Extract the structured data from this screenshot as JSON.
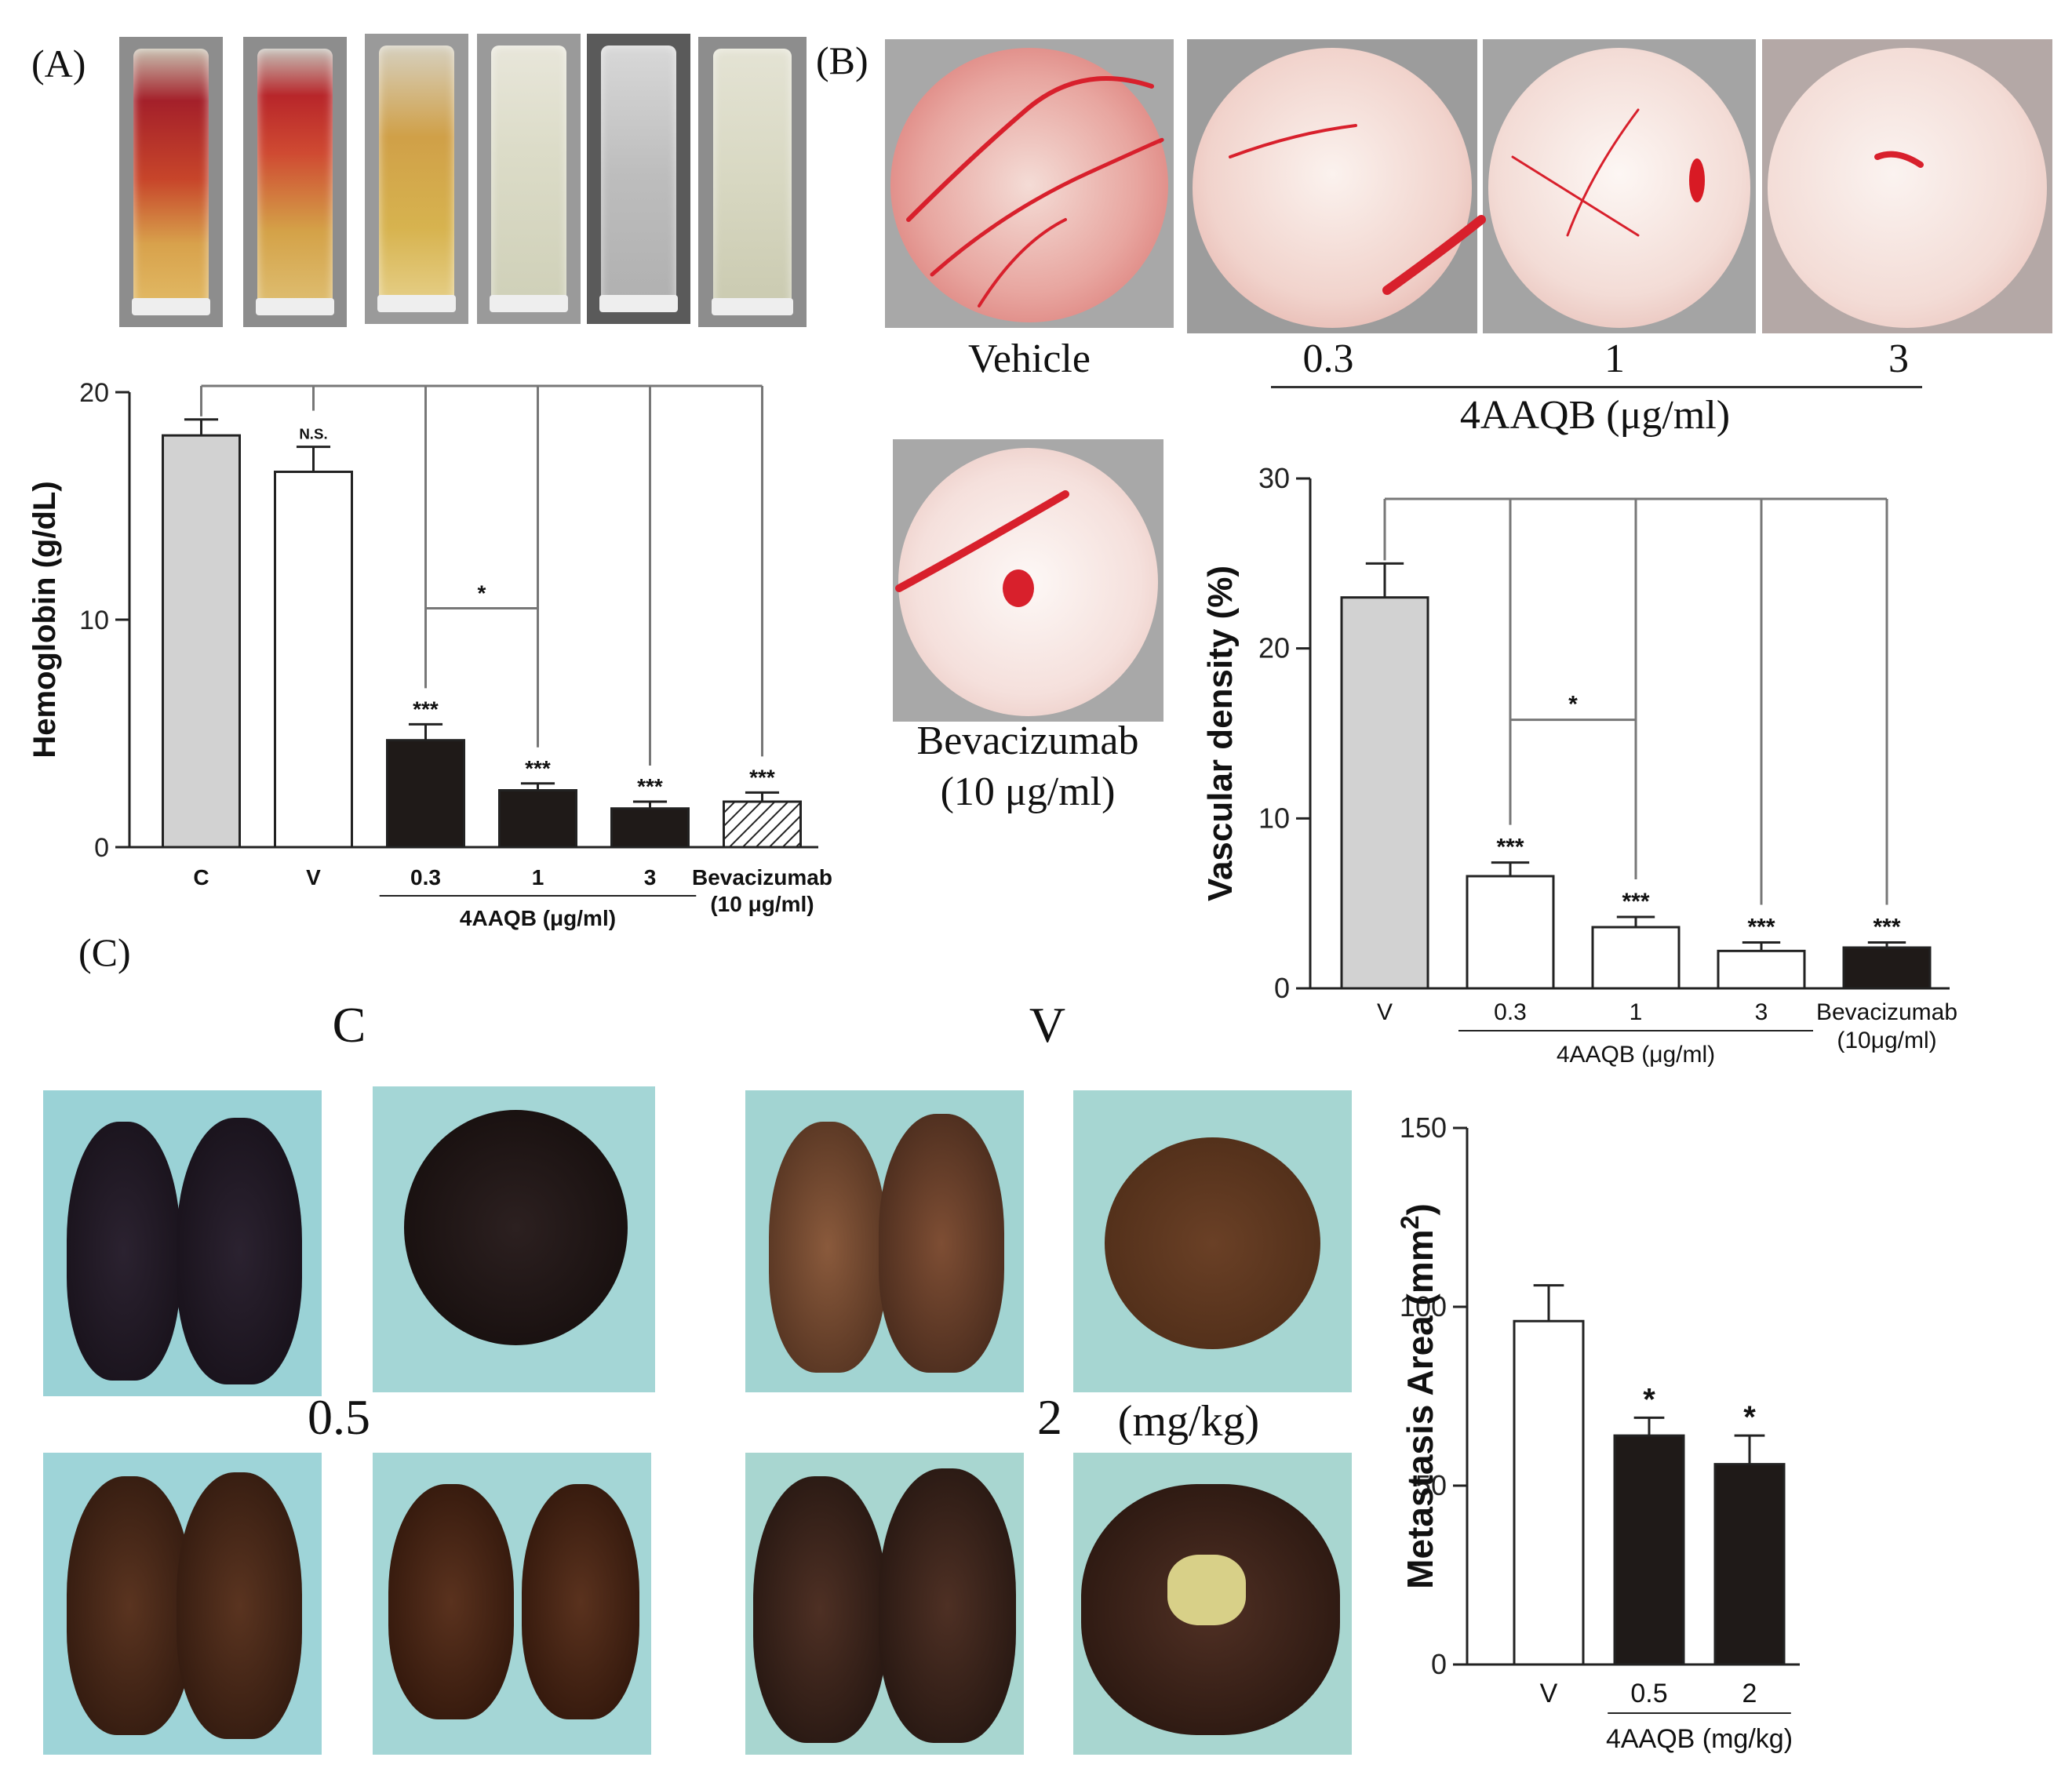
{
  "panels": {
    "A": "(A)",
    "B": "(B)",
    "C": "(C)"
  },
  "photo_labels": {
    "vehicle": "Vehicle",
    "dose_03": "0.3",
    "dose_1": "1",
    "dose_3": "3",
    "dose_unit": "4AAQB (μg/ml)",
    "bev_line1": "Bevacizumab",
    "bev_line2": "(10 μg/ml)",
    "lung_C": "C",
    "lung_V": "V",
    "lung_05": "0.5",
    "lung_2": "2",
    "lung_unit": "(mg/kg)"
  },
  "colors": {
    "gray": "#d2d2d2",
    "black": "#1f1a18",
    "white": "#ffffff",
    "line": "#555555"
  },
  "chart_data": [
    {
      "type": "bar",
      "ylabel": "Hemoglobin (g/dL)",
      "categories": [
        "C",
        "V",
        "0.3",
        "1",
        "3",
        "Bevacizumab"
      ],
      "category_sub": [
        "",
        "",
        "",
        "",
        "",
        "(10 μg/ml)"
      ],
      "values": [
        18.1,
        16.5,
        4.7,
        2.5,
        1.7,
        2.0
      ],
      "errors": [
        0.7,
        1.1,
        0.7,
        0.3,
        0.3,
        0.4
      ],
      "fills": [
        "gray",
        "white",
        "black",
        "black",
        "black",
        "hatch"
      ],
      "sig": [
        "",
        "N.S.",
        "***",
        "***",
        "***",
        "***"
      ],
      "pair_sig": "*",
      "group_label": "4AAQB (μg/ml)",
      "ylim": [
        0,
        20
      ],
      "yticks": [
        0,
        10,
        20
      ]
    },
    {
      "type": "bar",
      "ylabel": "Vascular density (%)",
      "categories": [
        "V",
        "0.3",
        "1",
        "3",
        "Bevacizumab"
      ],
      "category_sub": [
        "",
        "",
        "",
        "",
        "(10μg/ml)"
      ],
      "values": [
        23.0,
        6.6,
        3.6,
        2.2,
        2.4
      ],
      "errors": [
        2.0,
        0.8,
        0.6,
        0.5,
        0.3
      ],
      "fills": [
        "gray",
        "white",
        "white",
        "white",
        "black"
      ],
      "sig": [
        "",
        "***",
        "***",
        "***",
        "***"
      ],
      "pair_sig": "*",
      "group_label": "4AAQB (μg/ml)",
      "ylim": [
        0,
        30
      ],
      "yticks": [
        0,
        10,
        20,
        30
      ]
    },
    {
      "type": "bar",
      "ylabel": "Metastasis Area (mm",
      "ylabel_sup": "2",
      "ylabel_end": ")",
      "categories": [
        "V",
        "0.5",
        "2"
      ],
      "values": [
        96,
        64,
        56
      ],
      "errors": [
        10,
        5,
        8
      ],
      "fills": [
        "white",
        "black",
        "black"
      ],
      "sig": [
        "",
        "*",
        "*"
      ],
      "group_label": "4AAQB (mg/kg)",
      "ylim": [
        0,
        150
      ],
      "yticks": [
        0,
        50,
        100,
        150
      ]
    }
  ]
}
